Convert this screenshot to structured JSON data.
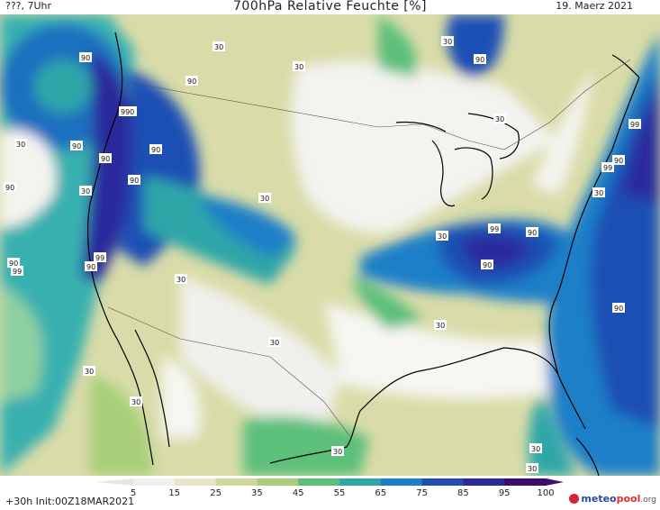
{
  "header": {
    "left": "???, 7Uhr",
    "title": "700hPa Relative Feuchte [%]",
    "right": "19. Maerz 2021"
  },
  "footer": {
    "left": "+30h Init:00Z18MAR2021"
  },
  "legend": {
    "labels": [
      "5",
      "15",
      "25",
      "35",
      "45",
      "55",
      "65",
      "75",
      "85",
      "95",
      "100"
    ],
    "colors": [
      "#ffffff",
      "#f0f0f0",
      "#e8e6c8",
      "#cfd89a",
      "#a9cf7a",
      "#5cbf7a",
      "#2fa6a8",
      "#1e7fc8",
      "#1f4fb4",
      "#2a2a9c",
      "#3a0d6e"
    ]
  },
  "logo": {
    "meteo": "meteo",
    "pool": "pool",
    "org": ".org"
  },
  "map_labels": [
    "30",
    "90",
    "99",
    "990"
  ]
}
